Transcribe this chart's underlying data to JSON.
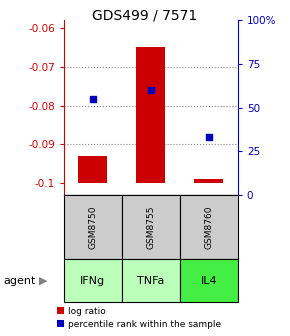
{
  "title": "GDS499 / 7571",
  "samples": [
    "GSM8750",
    "GSM8755",
    "GSM8760"
  ],
  "agents": [
    "IFNg",
    "TNFa",
    "IL4"
  ],
  "log_ratios": [
    -0.093,
    -0.065,
    -0.099
  ],
  "log_ratio_baseline": -0.1,
  "percentile_ranks": [
    55,
    60,
    33
  ],
  "ylim_left": [
    -0.103,
    -0.058
  ],
  "ylim_right": [
    0,
    100
  ],
  "yticks_left": [
    -0.1,
    -0.09,
    -0.08,
    -0.07,
    -0.06
  ],
  "ytick_labels_left": [
    "-0.1",
    "-0.09",
    "-0.08",
    "-0.07",
    "-0.06"
  ],
  "yticks_right": [
    0,
    25,
    50,
    75,
    100
  ],
  "ytick_labels_right": [
    "0",
    "25",
    "50",
    "75",
    "100%"
  ],
  "bar_color": "#cc0000",
  "square_color": "#0000bb",
  "agent_colors": [
    "#bbffbb",
    "#bbffbb",
    "#44ee44"
  ],
  "sample_box_color": "#cccccc",
  "grid_color": "#888888",
  "title_color": "#000000",
  "left_tick_color": "#cc0000",
  "right_tick_color": "#0000bb",
  "legend_bar_label": "log ratio",
  "legend_sq_label": "percentile rank within the sample",
  "agent_label": "agent",
  "gridlines_at": [
    -0.07,
    -0.08,
    -0.09
  ],
  "bar_width": 0.5
}
